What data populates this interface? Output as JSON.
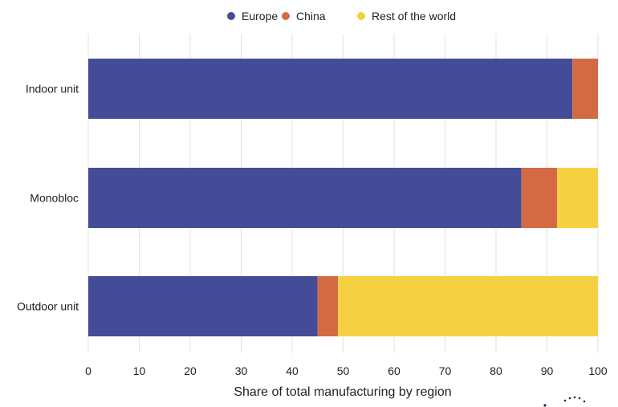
{
  "chart_data": {
    "type": "bar",
    "orientation": "horizontal",
    "stacked": true,
    "title": "",
    "xlabel": "Share of total manufacturing by region",
    "ylabel": "",
    "xlim": [
      0,
      100
    ],
    "xticks": [
      "0",
      "10",
      "20",
      "30",
      "40",
      "50",
      "60",
      "70",
      "80",
      "90",
      "100"
    ],
    "grid": true,
    "legend_position": "top-center",
    "categories": [
      "Indoor unit",
      "Monobloc",
      "Outdoor unit"
    ],
    "series": [
      {
        "name": "Europe",
        "color": "#444c98",
        "values": [
          95,
          85,
          45
        ]
      },
      {
        "name": "China",
        "color": "#d46a43",
        "values": [
          5,
          7,
          4
        ]
      },
      {
        "name": "Rest of the world",
        "color": "#f5d142",
        "values": [
          0,
          8,
          51
        ]
      }
    ]
  }
}
